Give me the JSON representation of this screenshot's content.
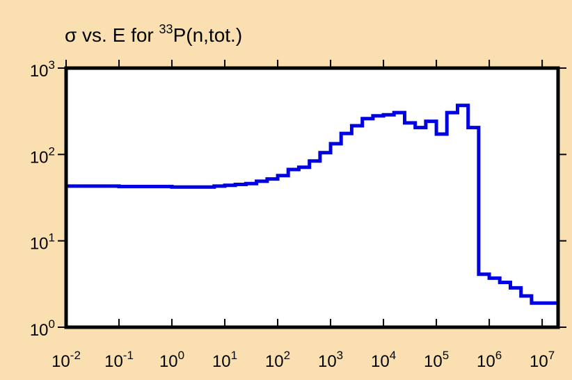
{
  "chart_data": {
    "type": "line",
    "title": {
      "prefix": "σ vs. E for ",
      "superscript": "33",
      "suffix": "P(n,tot.)"
    },
    "xscale": "log",
    "yscale": "log",
    "xlim": [
      0.01,
      20000000
    ],
    "ylim": [
      1,
      1000
    ],
    "x_ticks": [
      {
        "base": "10",
        "exp": "-2",
        "value": 0.01
      },
      {
        "base": "10",
        "exp": "-1",
        "value": 0.1
      },
      {
        "base": "10",
        "exp": "0",
        "value": 1
      },
      {
        "base": "10",
        "exp": "1",
        "value": 10
      },
      {
        "base": "10",
        "exp": "2",
        "value": 100
      },
      {
        "base": "10",
        "exp": "3",
        "value": 1000
      },
      {
        "base": "10",
        "exp": "4",
        "value": 10000
      },
      {
        "base": "10",
        "exp": "5",
        "value": 100000
      },
      {
        "base": "10",
        "exp": "6",
        "value": 1000000
      },
      {
        "base": "10",
        "exp": "7",
        "value": 10000000
      }
    ],
    "y_ticks": [
      {
        "base": "10",
        "exp": "0",
        "value": 1
      },
      {
        "base": "10",
        "exp": "1",
        "value": 10
      },
      {
        "base": "10",
        "exp": "2",
        "value": 100
      },
      {
        "base": "10",
        "exp": "3",
        "value": 1000
      }
    ],
    "grid": false,
    "line_color": "#0000e0",
    "background_color": "#fadfb0",
    "plot_background": "#ffffff",
    "series": [
      {
        "style": "step",
        "bin_edges": [
          0.01,
          0.1,
          1,
          3.16,
          6.31,
          10,
          15.8,
          25.1,
          39.8,
          63.1,
          100,
          158,
          251,
          398,
          631,
          1000,
          1580,
          2510,
          3980,
          6310,
          10000,
          15800,
          25100,
          39800,
          63100,
          100000,
          158000,
          251000,
          398000,
          631000,
          1000000,
          1580000,
          2510000,
          3980000,
          6310000,
          10000000,
          20000000
        ],
        "values": [
          43,
          42.5,
          42,
          42,
          43,
          44,
          45,
          46,
          49,
          52,
          57,
          67,
          71,
          84,
          105,
          133,
          175,
          215,
          260,
          280,
          288,
          305,
          232,
          205,
          242,
          172,
          305,
          370,
          205,
          4.1,
          3.7,
          3.3,
          2.85,
          2.3,
          1.9,
          1.9
        ]
      }
    ]
  }
}
